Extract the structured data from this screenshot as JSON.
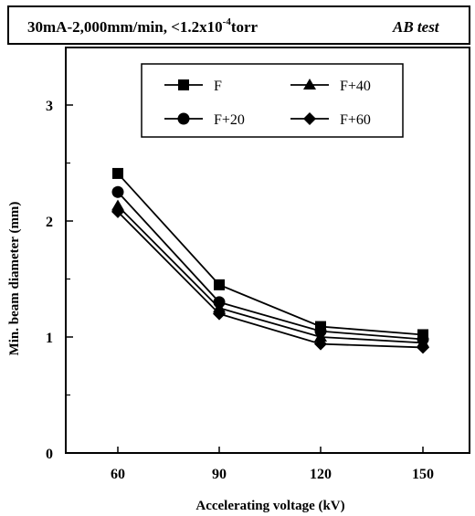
{
  "chart_data": {
    "type": "line",
    "title": "30mA-2,000mm/min, <1.2x10",
    "title_exponent": "-4",
    "title_suffix": "torr",
    "title_tag": "AB test",
    "xlabel": "Accelerating voltage (kV)",
    "ylabel": "Min. beam diameter (mm)",
    "x": [
      60,
      90,
      120,
      150
    ],
    "x_tick_labels": [
      "60",
      "90",
      "120",
      "150"
    ],
    "ylim": [
      0,
      3.5
    ],
    "y_ticks": [
      0,
      1,
      2,
      3
    ],
    "y_tick_labels": [
      "0",
      "1",
      "2",
      "3"
    ],
    "grid": false,
    "legend_position": "top-center",
    "series": [
      {
        "name": "F",
        "marker": "square",
        "values": [
          2.41,
          1.45,
          1.09,
          1.02
        ]
      },
      {
        "name": "F+20",
        "marker": "circle",
        "values": [
          2.25,
          1.3,
          1.05,
          0.98
        ]
      },
      {
        "name": "F+40",
        "marker": "triangle",
        "values": [
          2.13,
          1.25,
          1.0,
          0.95
        ]
      },
      {
        "name": "F+60",
        "marker": "diamond",
        "values": [
          2.08,
          1.2,
          0.94,
          0.91
        ]
      }
    ]
  }
}
